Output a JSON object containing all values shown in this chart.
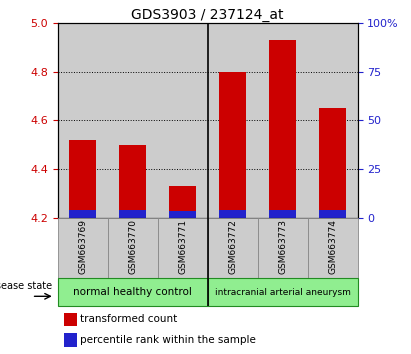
{
  "title": "GDS3903 / 237124_at",
  "samples": [
    "GSM663769",
    "GSM663770",
    "GSM663771",
    "GSM663772",
    "GSM663773",
    "GSM663774"
  ],
  "groups": [
    {
      "label": "normal healthy control",
      "indices": [
        0,
        1,
        2
      ],
      "color": "#90EE90"
    },
    {
      "label": "intracranial arterial aneurysm",
      "indices": [
        3,
        4,
        5
      ],
      "color": "#90EE90"
    }
  ],
  "transformed_counts": [
    4.52,
    4.5,
    4.33,
    4.8,
    4.93,
    4.65
  ],
  "percentile_top": [
    4.233,
    4.233,
    4.228,
    4.23,
    4.23,
    4.23
  ],
  "ymin": 4.2,
  "ymax": 5.0,
  "yticks_left": [
    4.2,
    4.4,
    4.6,
    4.8,
    5.0
  ],
  "yticks_right": [
    0,
    25,
    50,
    75,
    100
  ],
  "bar_color_red": "#CC0000",
  "bar_color_blue": "#2222CC",
  "bar_width": 0.55,
  "legend_red": "transformed count",
  "legend_blue": "percentile rank within the sample",
  "left_tick_color": "#CC0000",
  "right_tick_color": "#2222CC",
  "grid_color": "#000000",
  "col_bg_color": "#CCCCCC",
  "group1_color": "#90EE90",
  "group2_color": "#90EE90"
}
